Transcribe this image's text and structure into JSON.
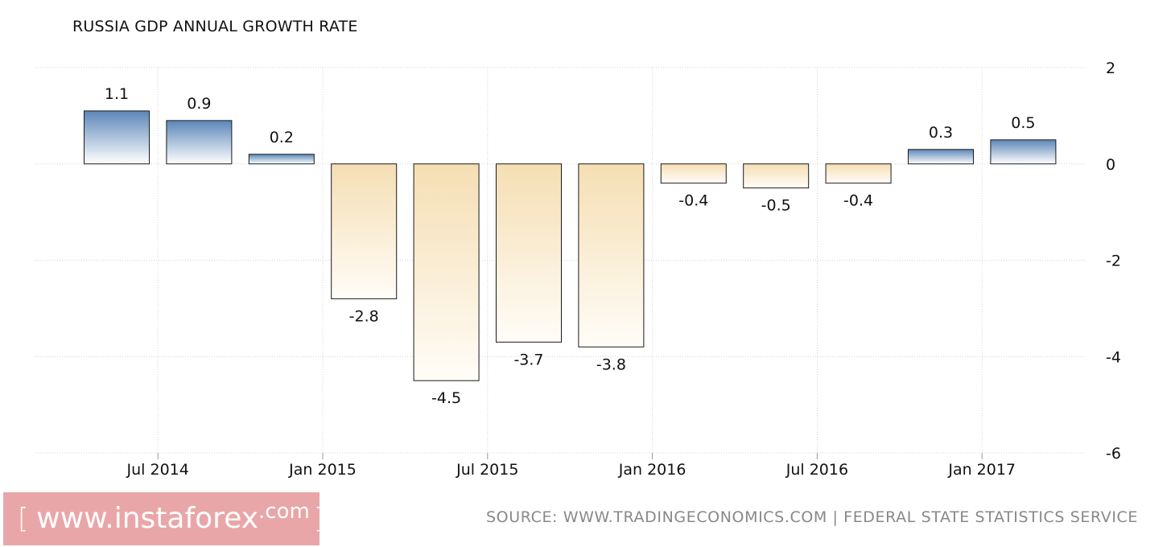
{
  "title": "RUSSIA GDP ANNUAL GROWTH RATE",
  "source_text": "SOURCE:  WWW.TRADINGECONOMICS.COM  |  FEDERAL  STATE  STATISTICS  SERVICE",
  "watermark": {
    "open": "[",
    "main": "www.instaforex",
    "suffix": ".com",
    "close": "]"
  },
  "colors": {
    "positive_top": "#5b86b8",
    "positive_bottom": "#ffffff",
    "negative_top": "#f5deb3",
    "negative_bottom": "#fffdf8",
    "grid": "#d4d4d4",
    "bar_border": "#1a1a1a",
    "watermark_bg": "#e9a6a8"
  },
  "chart_data": {
    "type": "bar",
    "title": "RUSSIA GDP ANNUAL GROWTH RATE",
    "quarters": [
      "2014-Q2",
      "2014-Q3",
      "2014-Q4",
      "2015-Q1",
      "2015-Q2",
      "2015-Q3",
      "2015-Q4",
      "2016-Q1",
      "2016-Q2",
      "2016-Q3",
      "2016-Q4",
      "2017-Q1"
    ],
    "values": [
      1.1,
      0.9,
      0.2,
      -2.8,
      -4.5,
      -3.7,
      -3.8,
      -0.4,
      -0.5,
      -0.4,
      0.3,
      0.5
    ],
    "data_labels": [
      "1.1",
      "0.9",
      "0.2",
      "-2.8",
      "-4.5",
      "-3.7",
      "-3.8",
      "-0.4",
      "-0.5",
      "-0.4",
      "0.3",
      "0.5"
    ],
    "x_tick_labels": [
      "Jul 2014",
      "Jan 2015",
      "Jul 2015",
      "Jan 2016",
      "Jul 2016",
      "Jan 2017"
    ],
    "y_ticks": [
      2,
      0,
      -2,
      -4,
      -6
    ],
    "ylim": [
      -6,
      2
    ],
    "y_axis_side": "right",
    "grid": true
  }
}
